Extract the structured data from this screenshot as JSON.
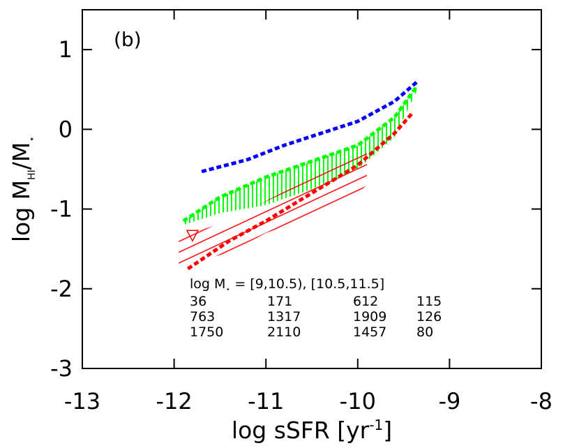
{
  "chart_data": {
    "type": "line",
    "panel_label": "(b)",
    "x_label": {
      "text": "log sSFR [yr",
      "sup": "-1",
      "end": "]"
    },
    "y_label": {
      "text": "log M",
      "sub1": "HI",
      "mid": "/M",
      "sub2": "⋆"
    },
    "xlim": [
      -13,
      -8
    ],
    "xticks": [
      -13,
      -12,
      -11,
      -10,
      -9,
      -8
    ],
    "ylim": [
      -3,
      1.5
    ],
    "yticks": [
      -3,
      -2,
      -1,
      0,
      1
    ],
    "series": [
      {
        "color": "#0000ff",
        "x": [
          -11.7,
          -11.2,
          -10.8,
          -10.4,
          -10.0,
          -9.6,
          -9.35
        ],
        "values": [
          -0.53,
          -0.38,
          -0.2,
          -0.05,
          0.1,
          0.35,
          0.6
        ]
      },
      {
        "color": "#00ff00",
        "x": [
          -11.9,
          -11.5,
          -11.0,
          -10.5,
          -10.0,
          -9.6,
          -9.35
        ],
        "values": [
          -1.15,
          -0.85,
          -0.6,
          -0.4,
          -0.2,
          0.15,
          0.55
        ]
      },
      {
        "color": "#ff0000",
        "x": [
          -11.85,
          -11.4,
          -11.0,
          -10.5,
          -10.0,
          -9.6,
          -9.4
        ],
        "values": [
          -1.75,
          -1.4,
          -1.15,
          -0.8,
          -0.45,
          -0.05,
          0.21
        ]
      }
    ],
    "bands": [
      {
        "color": "#00ff00",
        "x": [
          -11.9,
          -11.5,
          -11.0,
          -10.5,
          -10.0,
          -9.6,
          -9.35
        ],
        "lower": [
          -1.2,
          -1.05,
          -0.95,
          -0.75,
          -0.5,
          -0.1,
          0.5
        ],
        "upper": [
          -1.15,
          -0.85,
          -0.6,
          -0.4,
          -0.2,
          0.15,
          0.55
        ]
      },
      {
        "color": "#ff0000",
        "x": [
          -11.95,
          -11.4,
          -11.0,
          -10.5,
          -10.0,
          -9.9
        ],
        "lower": [
          -1.7,
          -1.55,
          -1.3,
          -1.1,
          -0.8,
          -0.7
        ],
        "upper": [
          -1.35,
          -1.15,
          -0.9,
          -0.6,
          -0.3,
          -0.2
        ]
      }
    ],
    "marker": {
      "color": "#ff0000",
      "x": -11.8,
      "y": -1.33
    },
    "legend_table": {
      "header": {
        "text": "log M",
        "sub": "⋆",
        "end": " = [9,10.5), [10.5,11.5]"
      },
      "rows": [
        {
          "color": "#0000ff",
          "values": [
            36,
            171,
            612,
            115
          ]
        },
        {
          "color": "#00ff00",
          "values": [
            763,
            1317,
            1909,
            126
          ]
        },
        {
          "color": "#ff0000",
          "values": [
            1750,
            2110,
            1457,
            80
          ]
        }
      ]
    }
  }
}
